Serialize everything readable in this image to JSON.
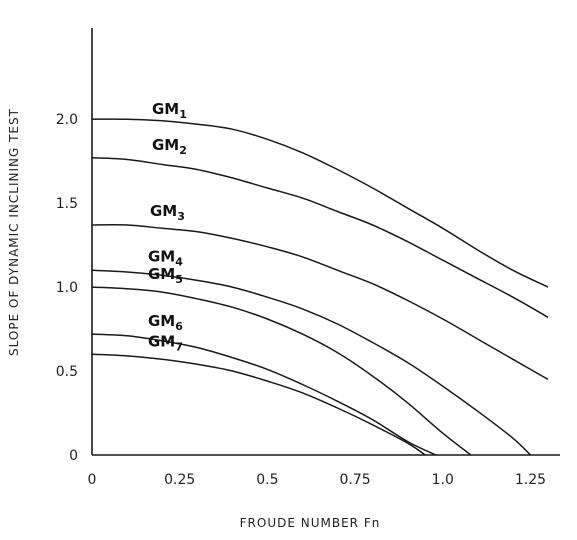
{
  "chart_data": {
    "type": "line",
    "xlabel": "FROUDE NUMBER Fn",
    "ylabel": "SLOPE OF DYNAMIC INCLINING TEST",
    "xlim": [
      0,
      1.3
    ],
    "ylim": [
      0,
      2.4
    ],
    "x_ticks": [
      "0",
      "0.25",
      "0.5",
      "0.75",
      "1.0",
      "1.25"
    ],
    "y_ticks": [
      "0",
      "0.5",
      "1.0",
      "1.5",
      "2.0"
    ],
    "grid": false,
    "series": [
      {
        "name": "GM1",
        "label_main": "GM",
        "label_sub": "1",
        "x": [
          0.0,
          0.1,
          0.2,
          0.3,
          0.4,
          0.5,
          0.6,
          0.7,
          0.8,
          0.9,
          1.0,
          1.1,
          1.2,
          1.3
        ],
        "y": [
          2.0,
          2.0,
          1.99,
          1.97,
          1.94,
          1.88,
          1.8,
          1.7,
          1.59,
          1.47,
          1.35,
          1.22,
          1.1,
          1.0
        ]
      },
      {
        "name": "GM2",
        "label_main": "GM",
        "label_sub": "2",
        "x": [
          0.0,
          0.1,
          0.2,
          0.3,
          0.4,
          0.5,
          0.6,
          0.7,
          0.8,
          0.9,
          1.0,
          1.1,
          1.2,
          1.3
        ],
        "y": [
          1.77,
          1.76,
          1.73,
          1.7,
          1.65,
          1.59,
          1.53,
          1.45,
          1.37,
          1.27,
          1.16,
          1.05,
          0.94,
          0.82
        ]
      },
      {
        "name": "GM3",
        "label_main": "GM",
        "label_sub": "3",
        "x": [
          0.0,
          0.1,
          0.2,
          0.3,
          0.4,
          0.5,
          0.6,
          0.7,
          0.8,
          0.9,
          1.0,
          1.1,
          1.2,
          1.3
        ],
        "y": [
          1.37,
          1.37,
          1.35,
          1.33,
          1.29,
          1.24,
          1.18,
          1.1,
          1.02,
          0.92,
          0.81,
          0.69,
          0.57,
          0.45
        ]
      },
      {
        "name": "GM4",
        "label_main": "GM",
        "label_sub": "4",
        "x": [
          0.0,
          0.1,
          0.2,
          0.3,
          0.4,
          0.5,
          0.6,
          0.7,
          0.8,
          0.9,
          1.0,
          1.1,
          1.2,
          1.25
        ],
        "y": [
          1.1,
          1.09,
          1.07,
          1.04,
          1.0,
          0.94,
          0.87,
          0.78,
          0.67,
          0.55,
          0.41,
          0.26,
          0.1,
          0.0
        ]
      },
      {
        "name": "GM5",
        "label_main": "GM",
        "label_sub": "5",
        "x": [
          0.0,
          0.1,
          0.2,
          0.3,
          0.4,
          0.5,
          0.6,
          0.7,
          0.8,
          0.9,
          1.0,
          1.08
        ],
        "y": [
          1.0,
          0.99,
          0.97,
          0.93,
          0.88,
          0.81,
          0.72,
          0.61,
          0.47,
          0.31,
          0.13,
          0.0
        ]
      },
      {
        "name": "GM6",
        "label_main": "GM",
        "label_sub": "6",
        "x": [
          0.0,
          0.1,
          0.2,
          0.3,
          0.4,
          0.5,
          0.6,
          0.7,
          0.8,
          0.9,
          0.98
        ],
        "y": [
          0.72,
          0.71,
          0.68,
          0.64,
          0.58,
          0.51,
          0.42,
          0.32,
          0.21,
          0.08,
          0.0
        ]
      },
      {
        "name": "GM7",
        "label_main": "GM",
        "label_sub": "7",
        "x": [
          0.0,
          0.1,
          0.2,
          0.3,
          0.4,
          0.5,
          0.6,
          0.7,
          0.8,
          0.9,
          0.95
        ],
        "y": [
          0.6,
          0.59,
          0.57,
          0.54,
          0.5,
          0.44,
          0.37,
          0.28,
          0.18,
          0.07,
          0.0
        ]
      }
    ]
  }
}
